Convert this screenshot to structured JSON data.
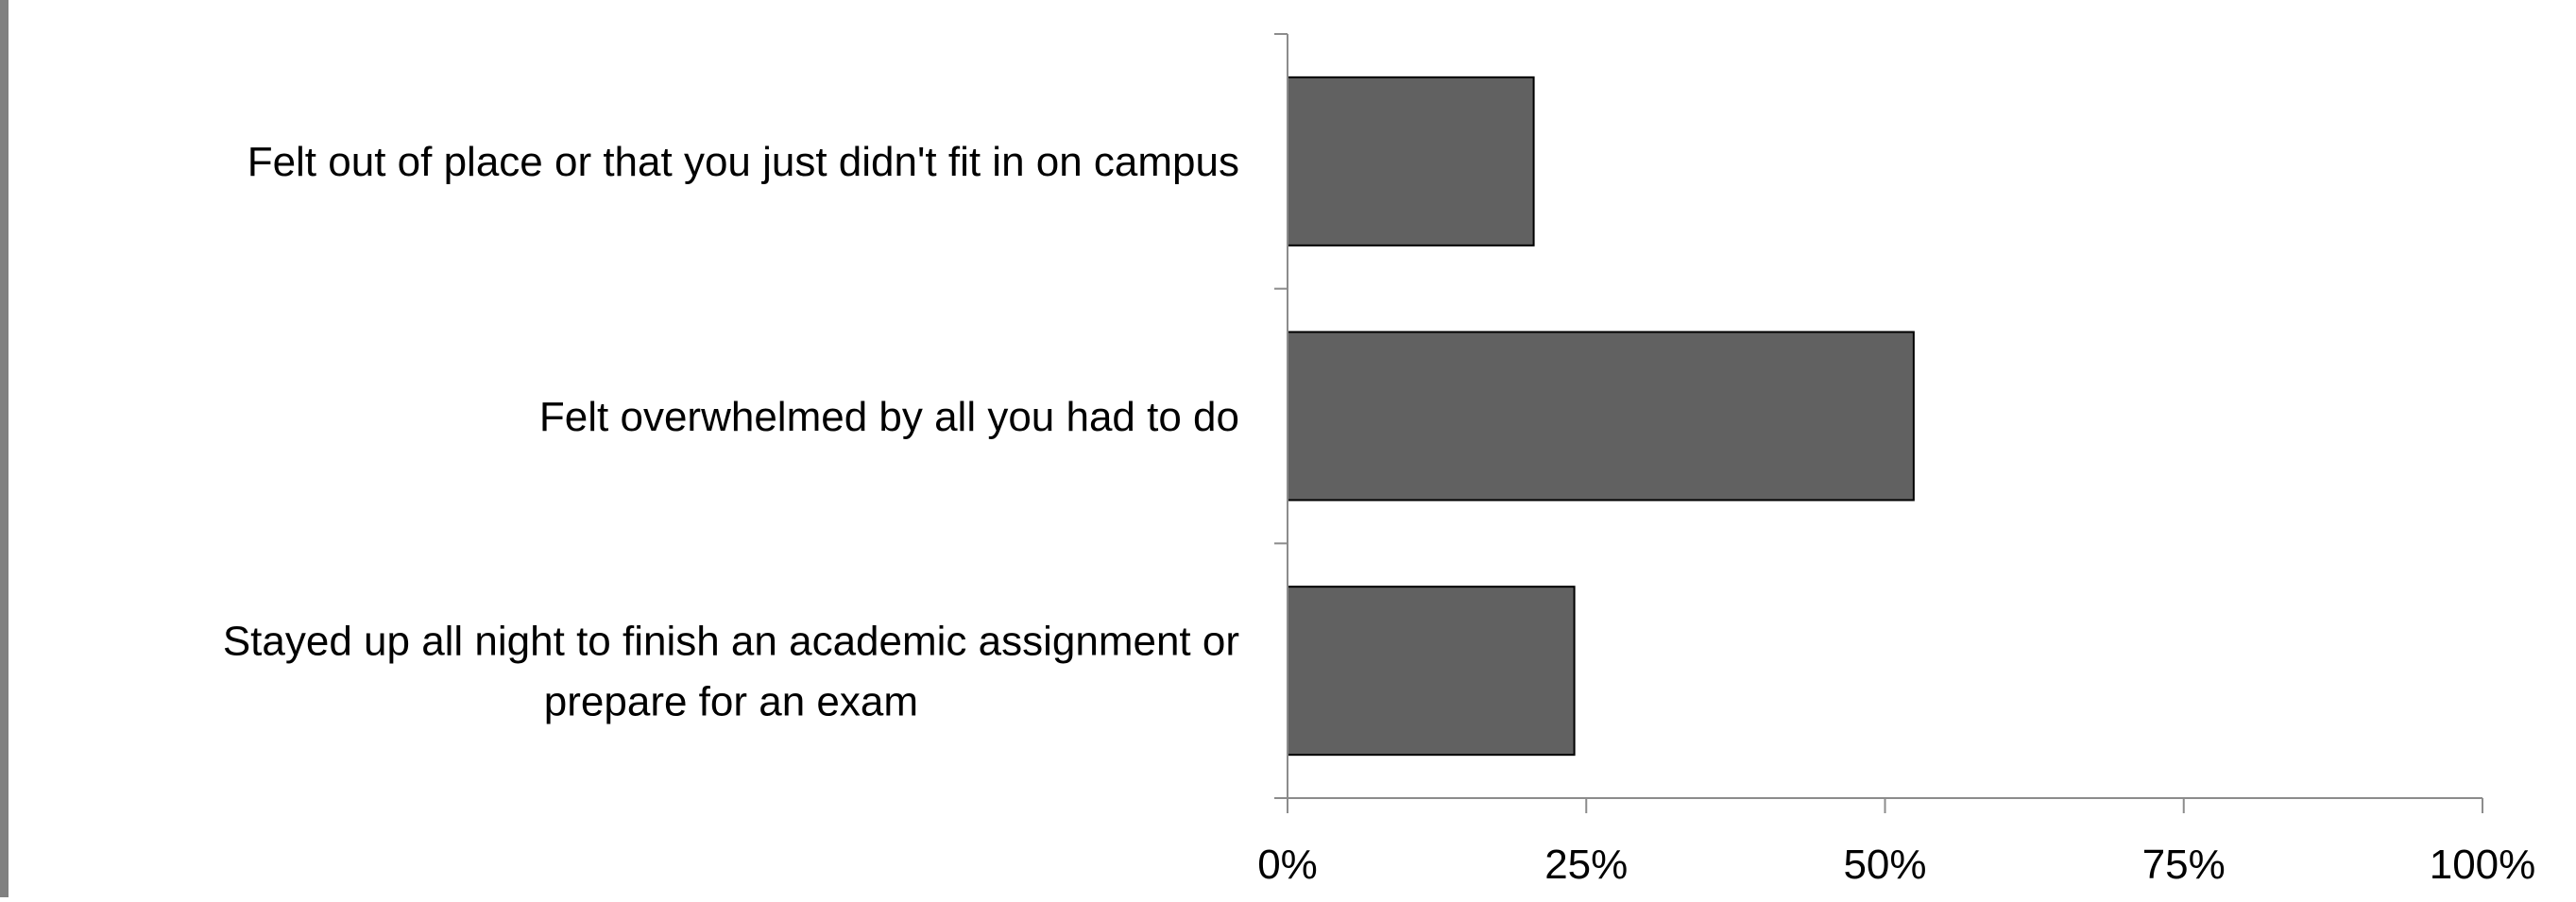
{
  "chart_data": {
    "type": "bar",
    "orientation": "horizontal",
    "categories": [
      "Felt out of place or that you just didn't fit in on campus",
      "Felt overwhelmed by all you had to do",
      "Stayed up all night to finish an academic assignment or prepare for an exam"
    ],
    "category_lines": [
      [
        "Felt out of place or that you just didn't fit in on campus"
      ],
      [
        "Felt overwhelmed by all you had to do"
      ],
      [
        "Stayed up all night to finish an academic assignment or",
        "prepare for an exam"
      ]
    ],
    "values": [
      0.206,
      0.524,
      0.24
    ],
    "xlim": [
      0,
      1
    ],
    "x_ticks": [
      0,
      0.25,
      0.5,
      0.75,
      1
    ],
    "x_tick_labels": [
      "0%",
      "25%",
      "50%",
      "75%",
      "100%"
    ],
    "grid": false,
    "legend": "none",
    "colors": {
      "bar_fill": "#616161",
      "bar_stroke": "#000000",
      "axis": "#8c8c8c",
      "frame": "#808080"
    }
  }
}
